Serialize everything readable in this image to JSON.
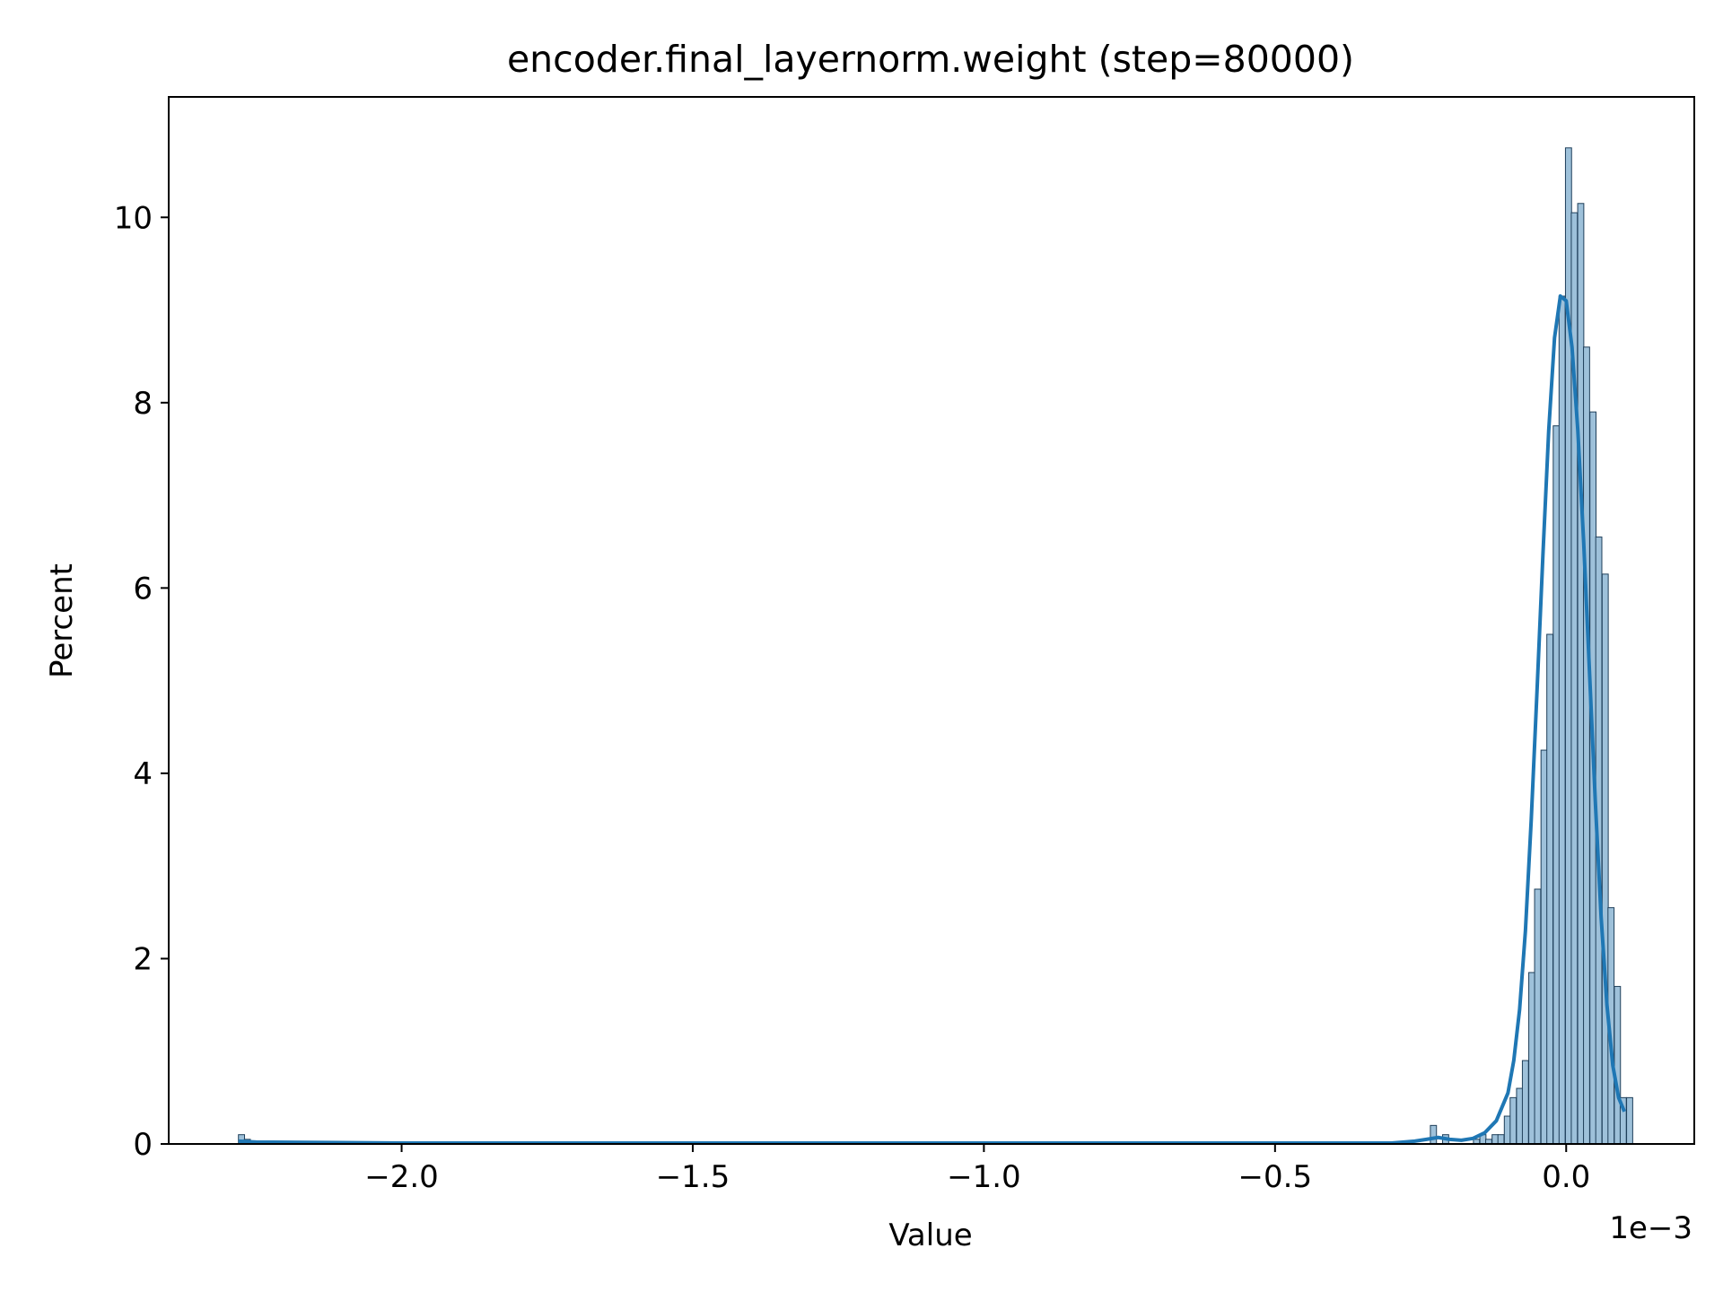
{
  "chart_data": {
    "type": "bar",
    "title": "encoder.final_layernorm.weight (step=80000)",
    "xlabel": "Value",
    "ylabel": "Percent",
    "x_offset_label": "1e−3",
    "xlim": [
      -2.4,
      0.22
    ],
    "ylim": [
      0,
      11.3
    ],
    "x_ticks": [
      -2.0,
      -1.5,
      -1.0,
      -0.5,
      0.0
    ],
    "x_tick_labels": [
      "−2.0",
      "−1.5",
      "−1.0",
      "−0.5",
      "0.0"
    ],
    "y_ticks": [
      0,
      2,
      4,
      6,
      8,
      10
    ],
    "y_tick_labels": [
      "0",
      "2",
      "4",
      "6",
      "8",
      "10"
    ],
    "grid": false,
    "legend": "none",
    "bin_width": 0.0105,
    "bins": [
      {
        "x": -2.275,
        "value": 0.1
      },
      {
        "x": -2.265,
        "value": 0.05
      },
      {
        "x": -0.228,
        "value": 0.2
      },
      {
        "x": -0.207,
        "value": 0.1
      },
      {
        "x": -0.154,
        "value": 0.05
      },
      {
        "x": -0.143,
        "value": 0.1
      },
      {
        "x": -0.133,
        "value": 0.05
      },
      {
        "x": -0.122,
        "value": 0.1
      },
      {
        "x": -0.112,
        "value": 0.1
      },
      {
        "x": -0.101,
        "value": 0.3
      },
      {
        "x": -0.091,
        "value": 0.5
      },
      {
        "x": -0.08,
        "value": 0.6
      },
      {
        "x": -0.07,
        "value": 0.9
      },
      {
        "x": -0.059,
        "value": 1.85
      },
      {
        "x": -0.049,
        "value": 2.75
      },
      {
        "x": -0.038,
        "value": 4.25
      },
      {
        "x": -0.028,
        "value": 5.5
      },
      {
        "x": -0.017,
        "value": 7.75
      },
      {
        "x": -0.007,
        "value": 9.15
      },
      {
        "x": 0.004,
        "value": 10.75
      },
      {
        "x": 0.014,
        "value": 10.05
      },
      {
        "x": 0.025,
        "value": 10.15
      },
      {
        "x": 0.035,
        "value": 8.6
      },
      {
        "x": 0.046,
        "value": 7.9
      },
      {
        "x": 0.056,
        "value": 6.55
      },
      {
        "x": 0.067,
        "value": 6.15
      },
      {
        "x": 0.077,
        "value": 2.55
      },
      {
        "x": 0.088,
        "value": 1.7
      },
      {
        "x": 0.098,
        "value": 0.5
      },
      {
        "x": 0.109,
        "value": 0.5
      }
    ],
    "kde": {
      "x": [
        -2.28,
        -2.25,
        -2.0,
        -1.5,
        -1.0,
        -0.5,
        -0.3,
        -0.26,
        -0.24,
        -0.22,
        -0.2,
        -0.18,
        -0.16,
        -0.14,
        -0.12,
        -0.1,
        -0.09,
        -0.08,
        -0.07,
        -0.06,
        -0.05,
        -0.04,
        -0.03,
        -0.02,
        -0.01,
        0.0,
        0.01,
        0.02,
        0.03,
        0.04,
        0.05,
        0.06,
        0.07,
        0.08,
        0.09,
        0.1
      ],
      "y": [
        0.03,
        0.02,
        0.01,
        0.01,
        0.01,
        0.01,
        0.01,
        0.03,
        0.05,
        0.07,
        0.05,
        0.04,
        0.06,
        0.12,
        0.25,
        0.55,
        0.9,
        1.45,
        2.3,
        3.5,
        4.9,
        6.35,
        7.7,
        8.7,
        9.15,
        9.1,
        8.6,
        7.7,
        6.5,
        5.1,
        3.7,
        2.45,
        1.5,
        0.85,
        0.5,
        0.35
      ]
    },
    "colors": {
      "bar_fill": "#9ec1da",
      "bar_edge": "#1f3f5a",
      "kde_line": "#1f77b4",
      "axes": "#000000"
    }
  }
}
